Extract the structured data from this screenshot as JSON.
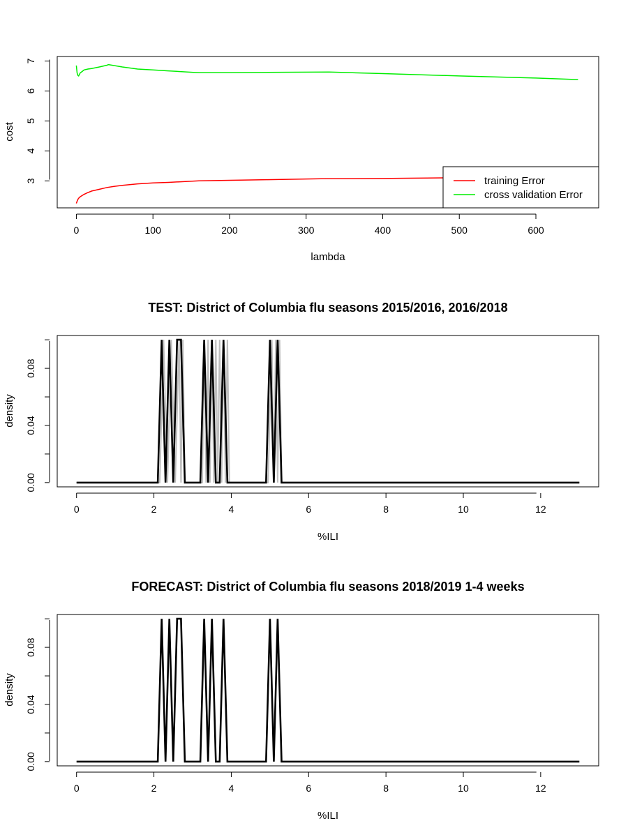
{
  "chart_data": [
    {
      "type": "line",
      "title": "",
      "xlabel": "lambda",
      "ylabel": "cost",
      "xlim": [
        -25,
        682
      ],
      "ylim": [
        2.1,
        7.15
      ],
      "x_ticks": [
        "0",
        "100",
        "200",
        "300",
        "400",
        "500",
        "600"
      ],
      "y_ticks": [
        "3",
        "4",
        "5",
        "6",
        "7"
      ],
      "legend": {
        "placement": "bottom-right"
      },
      "series": [
        {
          "name": "training Error",
          "color": "#ff0000",
          "x": [
            0,
            1,
            2,
            3,
            5,
            8,
            10,
            15,
            20,
            25,
            30,
            40,
            50,
            60,
            80,
            100,
            120,
            160,
            200,
            250,
            320,
            400,
            480
          ],
          "y": [
            2.25,
            2.32,
            2.38,
            2.42,
            2.47,
            2.52,
            2.55,
            2.61,
            2.66,
            2.69,
            2.72,
            2.78,
            2.82,
            2.85,
            2.9,
            2.93,
            2.95,
            3.0,
            3.02,
            3.04,
            3.07,
            3.08,
            3.1
          ]
        },
        {
          "name": "cross validation Error",
          "color": "#00ee00",
          "x": [
            0,
            1,
            2,
            3,
            5,
            8,
            10,
            15,
            20,
            30,
            40,
            42,
            60,
            80,
            100,
            120,
            160,
            200,
            250,
            330,
            400,
            500,
            600,
            655
          ],
          "y": [
            6.85,
            6.6,
            6.52,
            6.5,
            6.6,
            6.66,
            6.7,
            6.73,
            6.75,
            6.8,
            6.86,
            6.88,
            6.8,
            6.73,
            6.7,
            6.67,
            6.61,
            6.61,
            6.62,
            6.63,
            6.58,
            6.5,
            6.43,
            6.38
          ]
        }
      ]
    },
    {
      "type": "line",
      "title": "TEST: District of Columbia  flu seasons 2015/2016, 2016/2018",
      "xlabel": "%ILI",
      "ylabel": "density",
      "xlim": [
        -0.5,
        13.5
      ],
      "ylim": [
        -0.003,
        0.103
      ],
      "x_ticks": [
        "0",
        "2",
        "4",
        "6",
        "8",
        "10",
        "12"
      ],
      "y_ticks": [
        "0.00",
        "0.04",
        "0.08"
      ],
      "series": [
        {
          "color": "#bebebe",
          "x": [
            0,
            2.15,
            2.25,
            2.35,
            2.45,
            2.55,
            2.65,
            2.7,
            2.75,
            2.8,
            2.85,
            3.25,
            3.3,
            3.35,
            3.4,
            3.45,
            3.5,
            3.55,
            3.6,
            3.65,
            3.7,
            3.75,
            3.8,
            3.85,
            3.9,
            3.95,
            4.95,
            5.05,
            5.1,
            5.15,
            5.2,
            5.25,
            5.3,
            5.35,
            13
          ],
          "y": [
            0,
            0,
            0.1,
            0,
            0.1,
            0,
            0.1,
            0,
            0.1,
            0,
            0,
            0,
            0.1,
            0,
            0.1,
            0,
            0.1,
            0,
            0.1,
            0,
            0.1,
            0,
            0.1,
            0,
            0.1,
            0,
            0,
            0.1,
            0,
            0.1,
            0,
            0.1,
            0,
            0,
            0
          ]
        },
        {
          "color": "#000000",
          "x": [
            0,
            2.1,
            2.2,
            2.3,
            2.4,
            2.5,
            2.6,
            2.7,
            2.8,
            3.2,
            3.3,
            3.4,
            3.5,
            3.6,
            3.7,
            3.8,
            3.9,
            4.9,
            5.0,
            5.1,
            5.2,
            5.3,
            13
          ],
          "y": [
            0,
            0,
            0.1,
            0,
            0.1,
            0,
            0.1,
            0.1,
            0,
            0,
            0.1,
            0,
            0.1,
            0,
            0,
            0.1,
            0,
            0,
            0.1,
            0,
            0.1,
            0,
            0
          ]
        }
      ]
    },
    {
      "type": "line",
      "title": "FORECAST: District of Columbia flu seasons 2018/2019 1-4 weeks",
      "xlabel": "%ILI",
      "ylabel": "density",
      "xlim": [
        -0.5,
        13.5
      ],
      "ylim": [
        -0.003,
        0.103
      ],
      "x_ticks": [
        "0",
        "2",
        "4",
        "6",
        "8",
        "10",
        "12"
      ],
      "y_ticks": [
        "0.00",
        "0.04",
        "0.08"
      ],
      "series": [
        {
          "color": "#000000",
          "x": [
            0,
            2.1,
            2.2,
            2.3,
            2.4,
            2.5,
            2.6,
            2.7,
            2.8,
            3.2,
            3.3,
            3.4,
            3.5,
            3.6,
            3.7,
            3.8,
            3.9,
            4.9,
            5.0,
            5.1,
            5.2,
            5.3,
            13
          ],
          "y": [
            0,
            0,
            0.1,
            0,
            0.1,
            0,
            0.1,
            0.1,
            0,
            0,
            0.1,
            0,
            0.1,
            0,
            0,
            0.1,
            0,
            0,
            0.1,
            0,
            0.1,
            0,
            0
          ]
        }
      ]
    }
  ]
}
